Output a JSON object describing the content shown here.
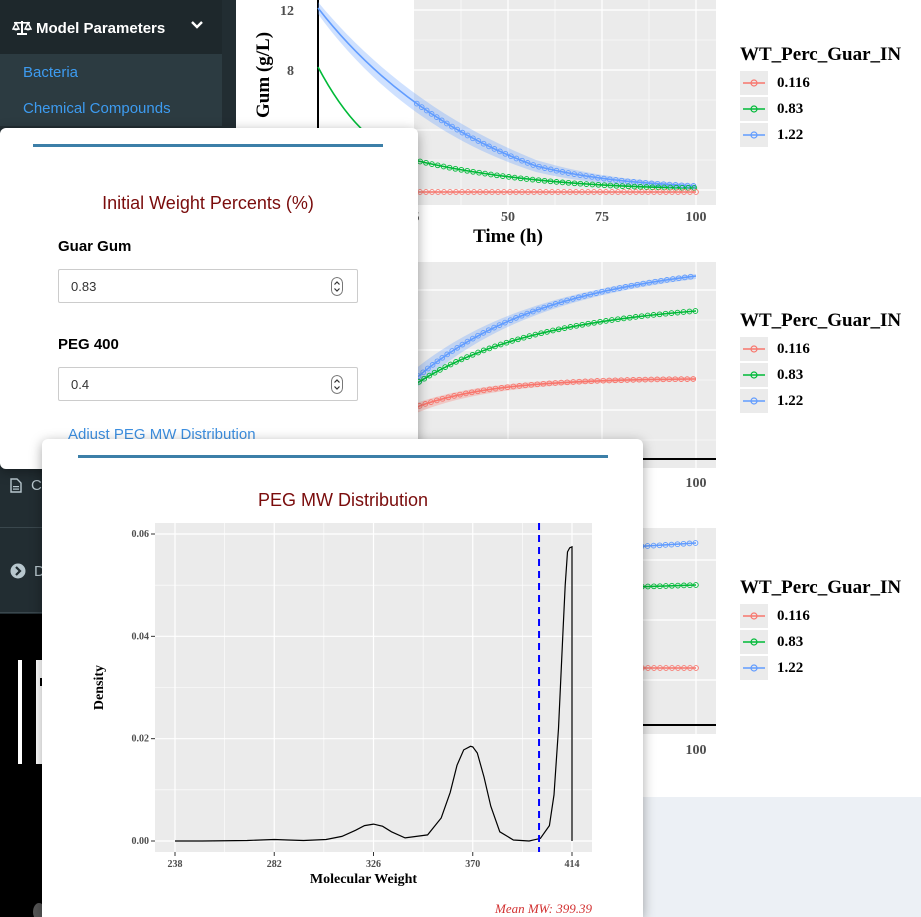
{
  "sidebar": {
    "header": "Model Parameters",
    "items": [
      "Bacteria",
      "Chemical Compounds"
    ],
    "lower_items": [
      {
        "label_fragment": "C",
        "icon": "file-icon"
      },
      {
        "label_fragment": "D",
        "icon": "chevron-circle-right-icon"
      }
    ]
  },
  "main_plots": {
    "plot1": {
      "ylabel_fragment": "Gum (g/L)",
      "xlabel": "Time (h)",
      "yticks": [
        "12",
        "8"
      ],
      "xticks": [
        "5",
        "50",
        "75",
        "100"
      ]
    },
    "plot2": {
      "xticks": [
        "100"
      ]
    },
    "plot3": {
      "xticks": [
        "100"
      ]
    }
  },
  "legends": [
    {
      "title": "WT_Perc_Guar_IN",
      "items": [
        "0.116",
        "0.83",
        "1.22"
      ]
    },
    {
      "title": "WT_Perc_Guar_IN",
      "items": [
        "0.116",
        "0.83",
        "1.22"
      ]
    },
    {
      "title": "WT_Perc_Guar_IN",
      "items": [
        "0.116",
        "0.83",
        "1.22"
      ]
    }
  ],
  "colors": {
    "series_red": "#f8766d",
    "series_green": "#00ba38",
    "series_blue": "#619cff",
    "panel": "#ebebeb",
    "accent": "#3c7fa8",
    "title": "#7a0c0c",
    "link": "#3d8fe0",
    "mean_line": "#0000ff"
  },
  "modal1": {
    "title": "Initial Weight Percents (%)",
    "fields": [
      {
        "label": "Guar Gum",
        "value": "0.83"
      },
      {
        "label": "PEG 400",
        "value": "0.4"
      }
    ],
    "link": "Adjust PEG MW Distribution"
  },
  "modal2": {
    "title": "PEG MW Distribution",
    "mean_label": "Mean MW: 399.39"
  },
  "chart_data": {
    "type": "line",
    "title": "PEG MW Distribution",
    "xlabel": "Molecular Weight",
    "ylabel": "Density",
    "xlim": [
      238,
      414
    ],
    "ylim": [
      0,
      0.06
    ],
    "xticks": [
      238,
      282,
      326,
      370,
      414
    ],
    "yticks": [
      0.0,
      0.02,
      0.04,
      0.06
    ],
    "yticklabels": [
      "0.00",
      "0.02",
      "0.04",
      "0.06"
    ],
    "grid": true,
    "x": [
      238,
      250,
      270,
      276,
      282,
      288,
      295,
      305,
      312,
      318,
      322,
      326,
      330,
      334,
      340,
      350,
      356,
      360,
      363,
      366,
      369,
      370,
      372,
      375,
      378,
      382,
      388,
      395,
      400,
      404,
      406,
      408,
      410,
      411,
      412,
      413,
      414
    ],
    "values": [
      0,
      0,
      0.0001,
      0.0002,
      0.0003,
      0.0002,
      0.0001,
      0.0003,
      0.0009,
      0.0021,
      0.003,
      0.0033,
      0.0029,
      0.0018,
      0.0006,
      0.0012,
      0.0045,
      0.0095,
      0.0148,
      0.0178,
      0.0185,
      0.0184,
      0.0172,
      0.0125,
      0.0068,
      0.0018,
      0.0002,
      0,
      0.0005,
      0.003,
      0.009,
      0.022,
      0.041,
      0.05,
      0.0565,
      0.0573,
      0.0575
    ],
    "mean_line_x": 399.39
  }
}
